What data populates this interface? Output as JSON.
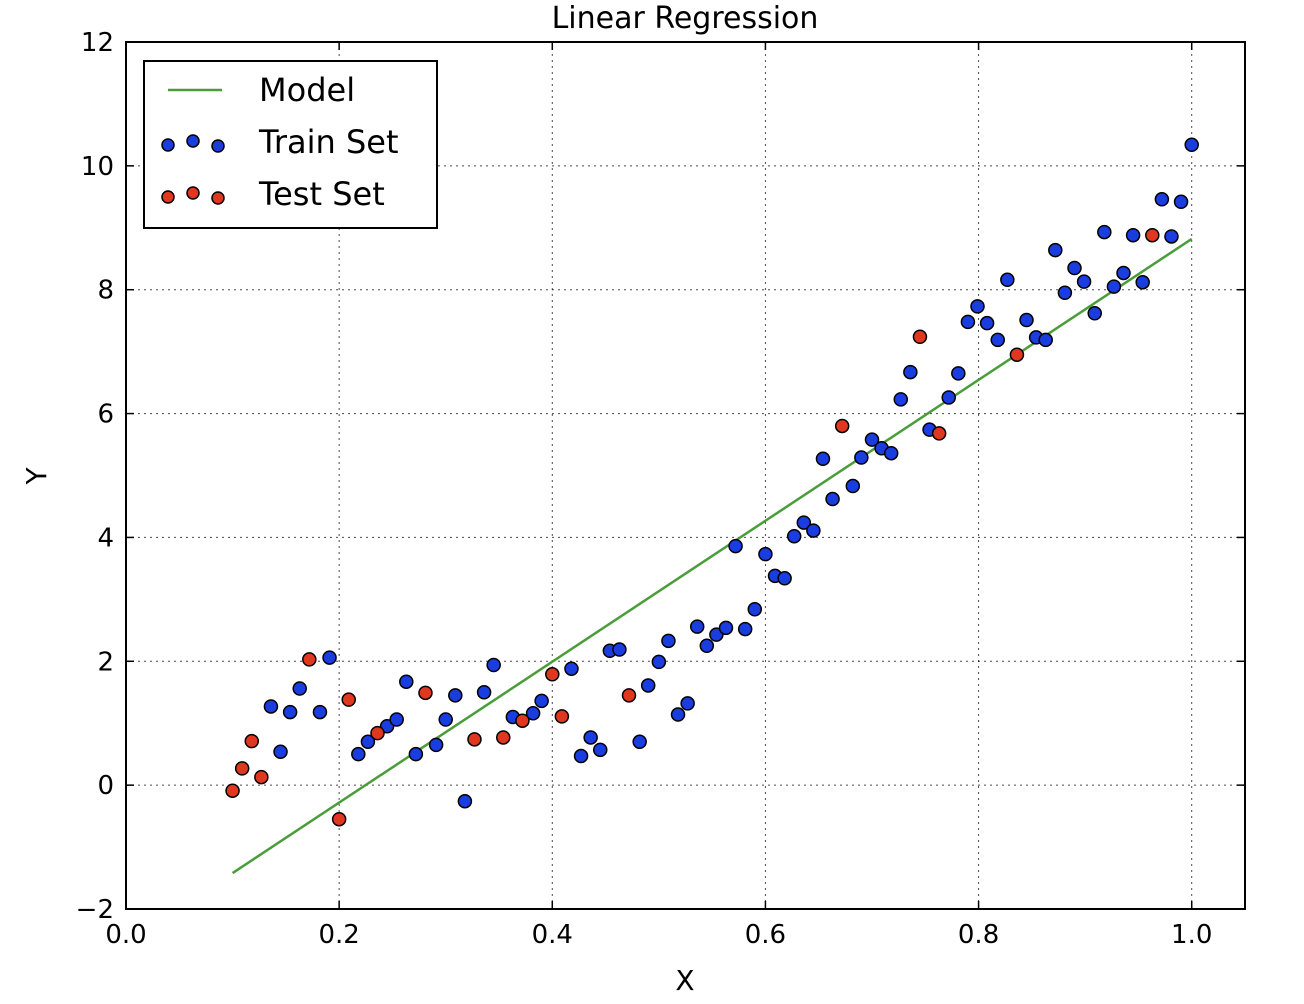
{
  "chart_data": {
    "type": "scatter",
    "title": "Linear Regression",
    "xlabel": "X",
    "ylabel": "Y",
    "xlim": [
      0.0,
      1.05
    ],
    "ylim": [
      -2,
      12
    ],
    "xticks": [
      0.0,
      0.2,
      0.4,
      0.6,
      0.8,
      1.0
    ],
    "xtick_labels": [
      "0.0",
      "0.2",
      "0.4",
      "0.6",
      "0.8",
      "1.0"
    ],
    "yticks": [
      -2,
      0,
      2,
      4,
      6,
      8,
      10,
      12
    ],
    "ytick_labels": [
      "−2",
      "0",
      "2",
      "4",
      "6",
      "8",
      "10",
      "12"
    ],
    "grid": true,
    "legend_position": "top-left",
    "legend": [
      {
        "label": "Model",
        "type": "line",
        "color": "#4a9d3a"
      },
      {
        "label": "Train Set",
        "type": "marker",
        "color": "#1a3de0"
      },
      {
        "label": "Test Set",
        "type": "marker",
        "color": "#e0371f"
      }
    ],
    "model_line": {
      "name": "Model",
      "color": "#4a9d3a",
      "x": [
        0.1,
        1.0
      ],
      "y": [
        -1.42,
        8.82
      ]
    },
    "series": [
      {
        "name": "Train Set",
        "color": "#1a3de0",
        "points": [
          [
            0.136,
            1.27
          ],
          [
            0.145,
            0.54
          ],
          [
            0.154,
            1.18
          ],
          [
            0.163,
            1.56
          ],
          [
            0.182,
            1.18
          ],
          [
            0.191,
            2.06
          ],
          [
            0.218,
            0.5
          ],
          [
            0.227,
            0.7
          ],
          [
            0.245,
            0.95
          ],
          [
            0.254,
            1.06
          ],
          [
            0.263,
            1.67
          ],
          [
            0.272,
            0.5
          ],
          [
            0.291,
            0.65
          ],
          [
            0.3,
            1.06
          ],
          [
            0.309,
            1.45
          ],
          [
            0.318,
            -0.26
          ],
          [
            0.336,
            1.5
          ],
          [
            0.345,
            1.94
          ],
          [
            0.363,
            1.1
          ],
          [
            0.382,
            1.16
          ],
          [
            0.39,
            1.36
          ],
          [
            0.418,
            1.88
          ],
          [
            0.427,
            0.47
          ],
          [
            0.436,
            0.77
          ],
          [
            0.445,
            0.57
          ],
          [
            0.454,
            2.17
          ],
          [
            0.463,
            2.19
          ],
          [
            0.482,
            0.7
          ],
          [
            0.49,
            1.61
          ],
          [
            0.5,
            1.99
          ],
          [
            0.509,
            2.33
          ],
          [
            0.518,
            1.14
          ],
          [
            0.527,
            1.32
          ],
          [
            0.536,
            2.56
          ],
          [
            0.545,
            2.25
          ],
          [
            0.554,
            2.43
          ],
          [
            0.563,
            2.54
          ],
          [
            0.572,
            3.86
          ],
          [
            0.581,
            2.52
          ],
          [
            0.59,
            2.84
          ],
          [
            0.6,
            3.73
          ],
          [
            0.609,
            3.38
          ],
          [
            0.618,
            3.34
          ],
          [
            0.627,
            4.02
          ],
          [
            0.636,
            4.24
          ],
          [
            0.645,
            4.11
          ],
          [
            0.654,
            5.27
          ],
          [
            0.663,
            4.62
          ],
          [
            0.682,
            4.83
          ],
          [
            0.69,
            5.29
          ],
          [
            0.7,
            5.58
          ],
          [
            0.709,
            5.44
          ],
          [
            0.718,
            5.36
          ],
          [
            0.727,
            6.23
          ],
          [
            0.736,
            6.67
          ],
          [
            0.754,
            5.74
          ],
          [
            0.772,
            6.26
          ],
          [
            0.781,
            6.65
          ],
          [
            0.79,
            7.48
          ],
          [
            0.799,
            7.73
          ],
          [
            0.808,
            7.46
          ],
          [
            0.818,
            7.19
          ],
          [
            0.827,
            8.16
          ],
          [
            0.845,
            7.51
          ],
          [
            0.854,
            7.23
          ],
          [
            0.863,
            7.19
          ],
          [
            0.872,
            8.64
          ],
          [
            0.881,
            7.95
          ],
          [
            0.89,
            8.35
          ],
          [
            0.899,
            8.13
          ],
          [
            0.909,
            7.62
          ],
          [
            0.918,
            8.93
          ],
          [
            0.927,
            8.05
          ],
          [
            0.936,
            8.27
          ],
          [
            0.945,
            8.88
          ],
          [
            0.954,
            8.12
          ],
          [
            0.972,
            9.46
          ],
          [
            0.981,
            8.86
          ],
          [
            0.99,
            9.42
          ],
          [
            1.0,
            10.34
          ]
        ]
      },
      {
        "name": "Test Set",
        "color": "#e0371f",
        "points": [
          [
            0.1,
            -0.09
          ],
          [
            0.109,
            0.27
          ],
          [
            0.118,
            0.71
          ],
          [
            0.127,
            0.13
          ],
          [
            0.172,
            2.03
          ],
          [
            0.2,
            -0.55
          ],
          [
            0.209,
            1.38
          ],
          [
            0.236,
            0.84
          ],
          [
            0.281,
            1.49
          ],
          [
            0.327,
            0.74
          ],
          [
            0.354,
            0.77
          ],
          [
            0.372,
            1.04
          ],
          [
            0.4,
            1.79
          ],
          [
            0.409,
            1.11
          ],
          [
            0.472,
            1.45
          ],
          [
            0.672,
            5.8
          ],
          [
            0.745,
            7.24
          ],
          [
            0.763,
            5.68
          ],
          [
            0.836,
            6.95
          ],
          [
            0.963,
            8.88
          ]
        ]
      }
    ]
  }
}
